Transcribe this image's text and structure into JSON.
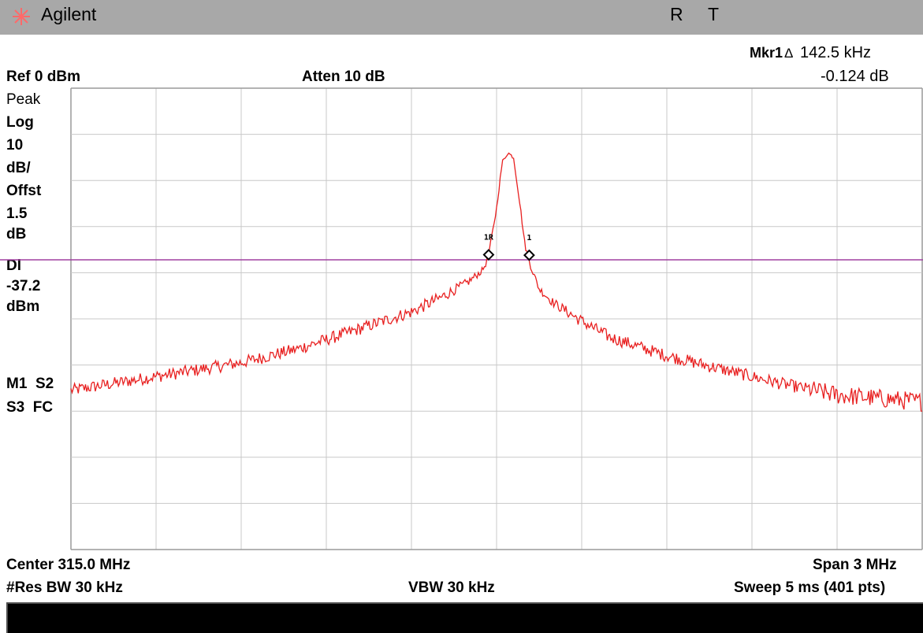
{
  "header": {
    "brand": "Agilent",
    "status_r": "R",
    "status_t": "T"
  },
  "marker_readout": {
    "label": "Mkr1",
    "delta_symbol": "Δ",
    "freq": "142.5 kHz",
    "amplitude": "-0.124 dB"
  },
  "top": {
    "ref_level": "Ref 0 dBm",
    "atten": "Atten 10 dB"
  },
  "side_panel": {
    "detector": "Peak",
    "scale_type": "Log",
    "scale_value": "10",
    "scale_unit": "dB/",
    "offset_label": "Offst",
    "offset_value": "1.5",
    "offset_unit": "dB",
    "display_line_label": "Dl",
    "display_line_value": "-37.2",
    "display_line_unit": "dBm",
    "flags_row1": "M1  S2",
    "flags_row2": "S3  FC"
  },
  "bottom": {
    "center": "Center 315.0 MHz",
    "span": "Span 3 MHz",
    "rbw": "#Res BW 30 kHz",
    "vbw": "VBW 30 kHz",
    "sweep": "Sweep 5 ms (401 pts)"
  },
  "chart_data": {
    "type": "line",
    "x_label": "",
    "y_label": "",
    "x_range_mhz": [
      313.5,
      316.5
    ],
    "y_range_dbm": [
      -100,
      0
    ],
    "grid": true,
    "grid_divisions": [
      10,
      10
    ],
    "trace_color": "#e82020",
    "display_line_dbm": -37.2,
    "display_line_color": "#a040a0",
    "markers": [
      {
        "label": "1R",
        "x_mhz": 314.972,
        "y_dbm": -36.1
      },
      {
        "label": "1",
        "x_mhz": 315.115,
        "y_dbm": -36.2
      }
    ],
    "series": [
      {
        "x_mhz": [
          313.5,
          313.7,
          313.9,
          314.1,
          314.3,
          314.5,
          314.7,
          314.8,
          314.9,
          314.95,
          314.97,
          315.0,
          315.02,
          315.04,
          315.06,
          315.08,
          315.1,
          315.12,
          315.15,
          315.2,
          315.3,
          315.4,
          315.6,
          315.8,
          316.0,
          316.2,
          316.5
        ],
        "y_dbm": [
          -65.5,
          -63.5,
          -61.5,
          -59.5,
          -56.5,
          -52.5,
          -48.5,
          -45.5,
          -42,
          -39.5,
          -37,
          -26,
          -16,
          -14,
          -15,
          -24,
          -34,
          -38.5,
          -43.5,
          -46.5,
          -50.5,
          -54,
          -58,
          -61,
          -64,
          -66.5,
          -68
        ]
      }
    ]
  }
}
